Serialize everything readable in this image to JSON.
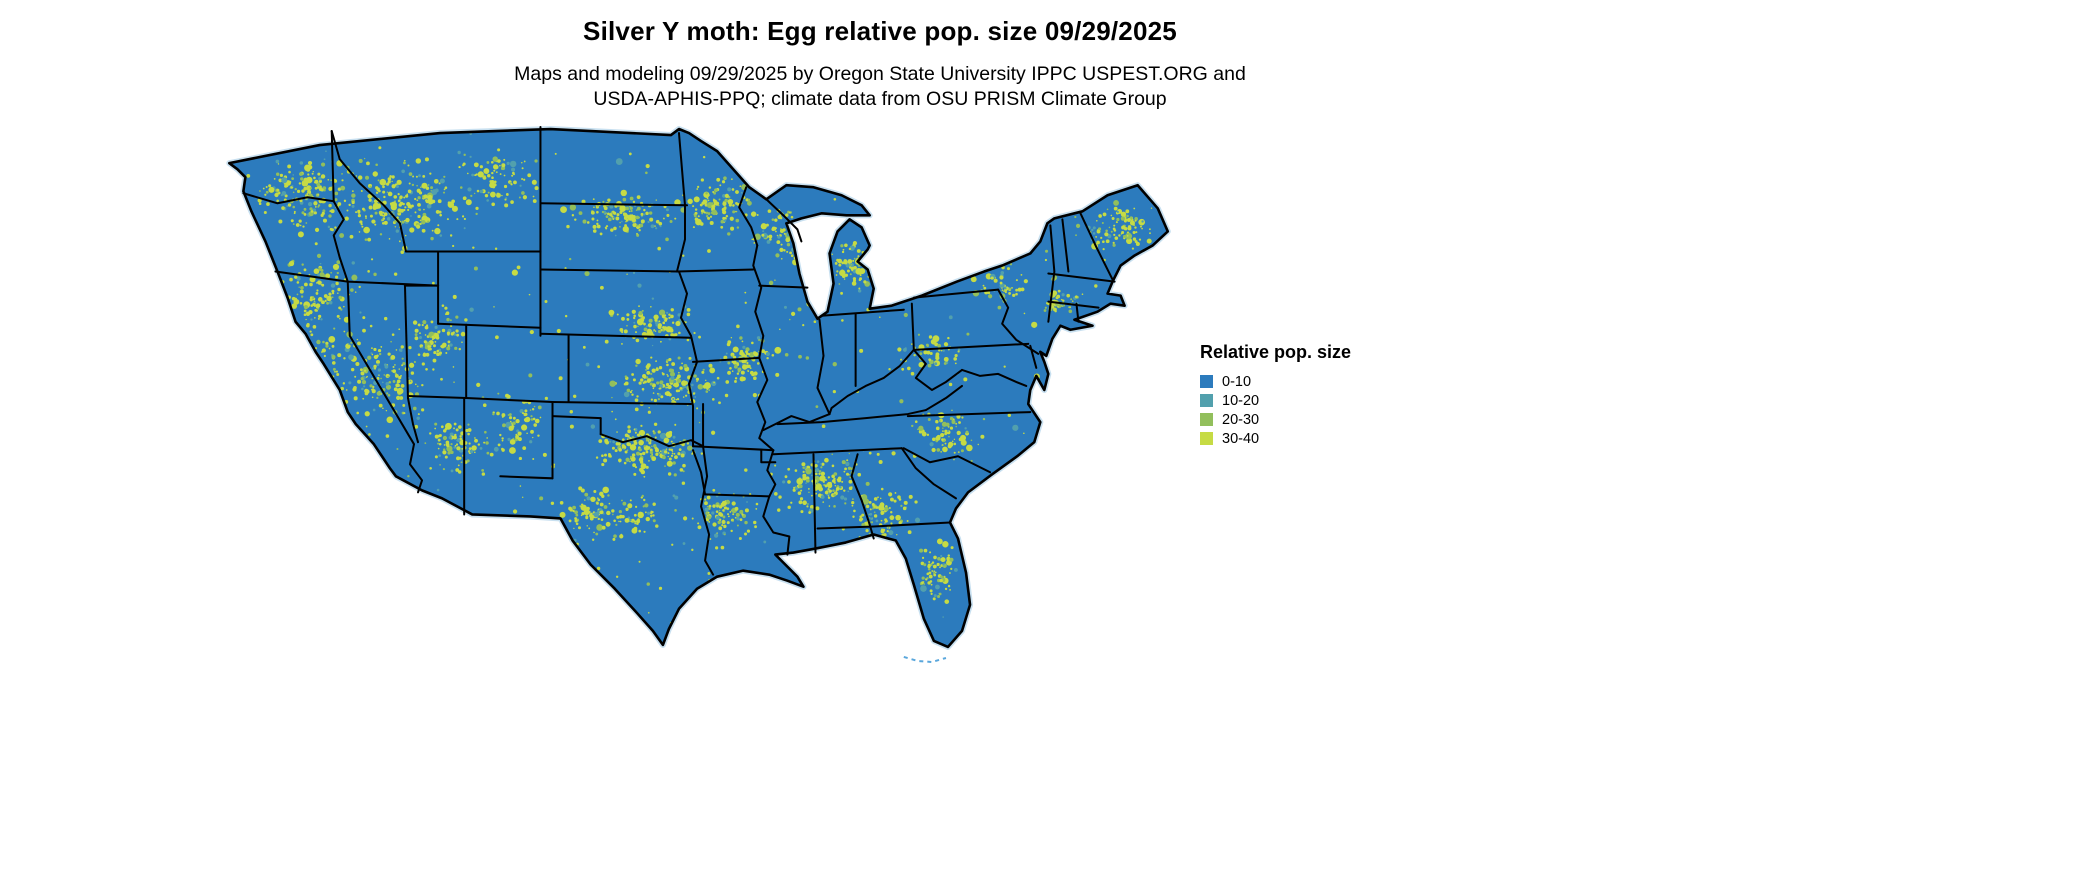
{
  "title": "Silver Y moth: Egg relative pop. size 09/29/2025",
  "subtitle_line1": "Maps and modeling 09/29/2025 by Oregon State University IPPC USPEST.ORG and",
  "subtitle_line2": "USDA-APHIS-PPQ; climate data from OSU PRISM Climate Group",
  "legend": {
    "title": "Relative pop. size",
    "items": [
      {
        "label": "0-10",
        "color": "#2c7bbd"
      },
      {
        "label": "10-20",
        "color": "#52a0ad"
      },
      {
        "label": "20-30",
        "color": "#92bf5c"
      },
      {
        "label": "30-40",
        "color": "#c6db44"
      }
    ]
  },
  "map": {
    "region": "Continental United States",
    "base_color": "#2c7bbd",
    "border_color": "#000000",
    "coast_halo_color": "#aacfe8",
    "background": "#ffffff"
  },
  "chart_data": {
    "type": "heatmap",
    "title": "Silver Y moth: Egg relative pop. size 09/29/2025",
    "subtitle": "Maps and modeling 09/29/2025 by Oregon State University IPPC USPEST.ORG and USDA-APHIS-PPQ; climate data from OSU PRISM Climate Group",
    "region": "Continental United States",
    "legend_title": "Relative pop. size",
    "categories": [
      "0-10",
      "10-20",
      "20-30",
      "30-40"
    ],
    "colors": [
      "#2c7bbd",
      "#52a0ad",
      "#92bf5c",
      "#c6db44"
    ],
    "legend_position": "right",
    "dominant_category": "0-10",
    "high_value_regions": [
      "Pacific Northwest mountains",
      "Northern Rockies",
      "Great Basin",
      "Upper Midwest",
      "Central Plains",
      "Southern Plains",
      "Southeast",
      "Appalachians",
      "New England coast",
      "Central Florida"
    ]
  }
}
